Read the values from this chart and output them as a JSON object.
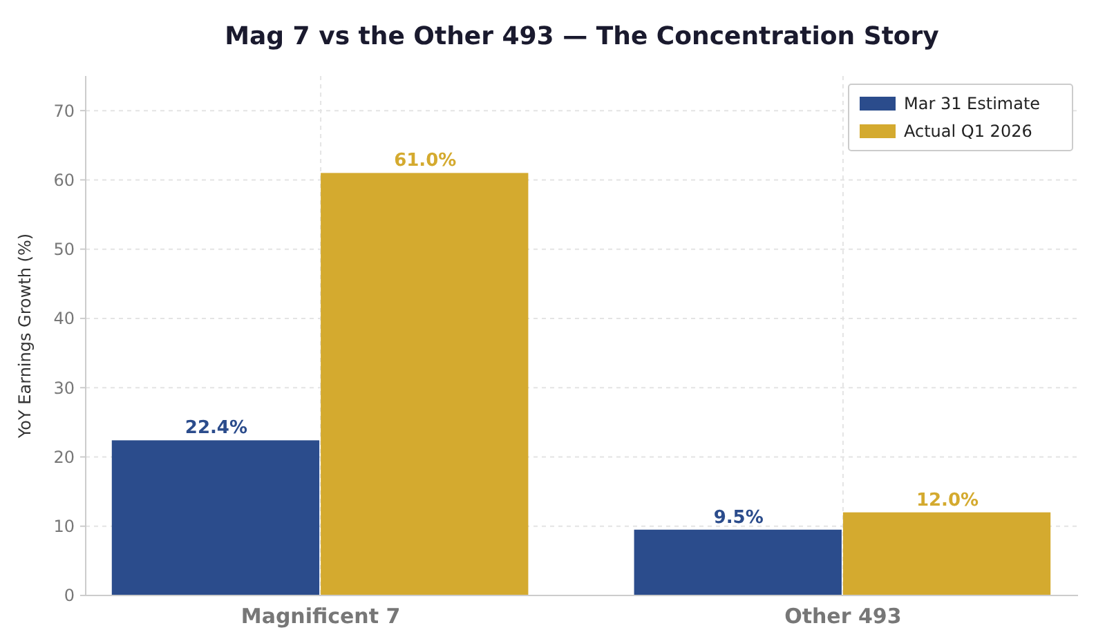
{
  "chart_data": {
    "type": "bar",
    "title": "Mag 7 vs the Other 493 — The Concentration Story",
    "ylabel": "YoY Earnings Growth (%)",
    "categories": [
      "Magnificent 7",
      "Other 493"
    ],
    "series": [
      {
        "name": "Mar 31 Estimate",
        "color": "#2b4c8c",
        "values": [
          22.4,
          9.5
        ],
        "value_labels": [
          "22.4%",
          "9.5%"
        ]
      },
      {
        "name": "Actual Q1 2026",
        "color": "#d4aa2f",
        "values": [
          61.0,
          12.0
        ],
        "value_labels": [
          "61.0%",
          "12.0%"
        ]
      }
    ],
    "ylim": [
      0,
      75
    ],
    "yticks": [
      0,
      10,
      20,
      30,
      40,
      50,
      60,
      70
    ],
    "grid": true,
    "legend": "top right"
  }
}
